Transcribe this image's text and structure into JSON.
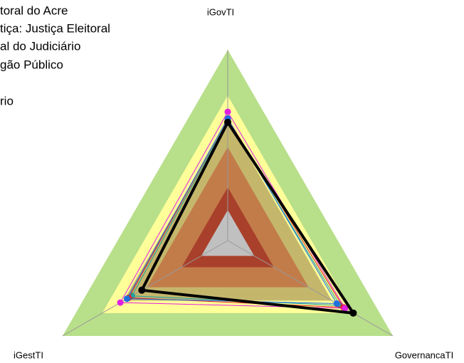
{
  "chart_data": {
    "type": "radar",
    "categories": [
      "iGovTI",
      "GovernancaTI",
      "iGestTI"
    ],
    "rlim": [
      0,
      1
    ],
    "zones": [
      {
        "value": 1.0,
        "color": "#b8df8a"
      },
      {
        "value": 0.76,
        "color": "#ffff99"
      },
      {
        "value": 0.63,
        "color": "#c4b76c"
      },
      {
        "value": 0.49,
        "color": "#c27c4a"
      },
      {
        "value": 0.28,
        "color": "#a9402b"
      },
      {
        "value": 0.16,
        "color": "#c0c0c0"
      }
    ],
    "series": [
      {
        "name": "toral do Acre",
        "color": "#000000",
        "values": [
          0.62,
          0.76,
          0.52
        ]
      },
      {
        "name": "tiça: Justiça Eleitoral",
        "color": "#e020e0",
        "values": [
          0.675,
          0.71,
          0.65
        ]
      },
      {
        "name": "al do Judiciário",
        "color": "#1e6fe0",
        "values": [
          0.64,
          0.66,
          0.61
        ]
      },
      {
        "name": "gão Público",
        "color": "#e02020",
        "values": [
          0.64,
          0.7,
          0.6
        ]
      },
      {
        "name": "rio",
        "color": "#20a0a0",
        "values": [
          0.63,
          0.68,
          0.58
        ]
      }
    ]
  }
}
